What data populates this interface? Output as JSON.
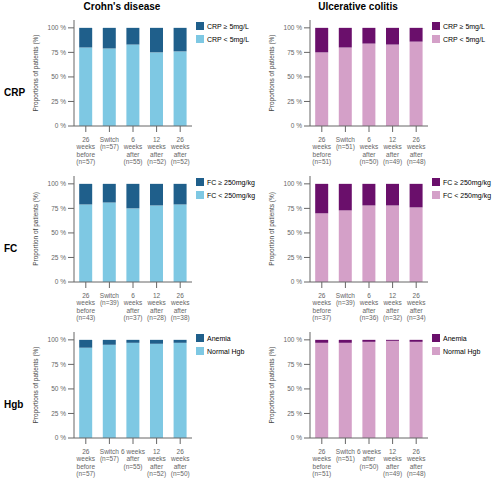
{
  "chart_data": [
    {
      "type": "bar",
      "title": "Crohn's disease",
      "annotations": [
        "CRP"
      ],
      "stacked": true,
      "grid": false,
      "legend": "right",
      "ylabel": "Proportions of patients (%)",
      "categories": [
        "26\nweeks\nbefore\n(n=57)",
        "Switch\n(n=57)",
        "6\nweeks\nafter\n(n=55)",
        "12\nweeks\nafter\n(n=52)",
        "26\nweeks\nafter\n(n=52)"
      ],
      "series": [
        {
          "name": "CRP < 5mg/L",
          "color": "#7EC8E3",
          "values": [
            80,
            79,
            83,
            75,
            76
          ]
        },
        {
          "name": "CRP ≥ 5mg/L",
          "color": "#1F5F8B",
          "values": [
            20,
            21,
            17,
            25,
            24
          ]
        }
      ],
      "ylim": [
        0,
        108
      ],
      "yticks": [
        {
          "value": 0,
          "label": "0 %"
        },
        {
          "value": 25,
          "label": "25 %"
        },
        {
          "value": 50,
          "label": "50 %"
        },
        {
          "value": 75,
          "label": "75 %"
        },
        {
          "value": 100,
          "label": "100 %"
        }
      ]
    },
    {
      "type": "bar",
      "title": "Ulcerative colitis",
      "stacked": true,
      "grid": false,
      "legend": "right",
      "ylabel": "Proportions of patients (%)",
      "categories": [
        "26\nweeks\nbefore\n(n=51)",
        "Switch\n(n=51)",
        "6\nweeks\nafter\n(n=50)",
        "12\nweeks\nafter\n(n=49)",
        "26\nweeks\nafter\n(n=48)"
      ],
      "series": [
        {
          "name": "CRP < 5mg/L",
          "color": "#D4A0C8",
          "values": [
            75,
            80,
            84,
            83,
            86
          ]
        },
        {
          "name": "CRP ≥ 5mg/L",
          "color": "#6A0F6B",
          "values": [
            25,
            20,
            16,
            17,
            14
          ]
        }
      ],
      "ylim": [
        0,
        108
      ],
      "yticks": [
        {
          "value": 0,
          "label": "0 %"
        },
        {
          "value": 25,
          "label": "25 %"
        },
        {
          "value": 50,
          "label": "50 %"
        },
        {
          "value": 75,
          "label": "75 %"
        },
        {
          "value": 100,
          "label": "100 %"
        }
      ]
    },
    {
      "type": "bar",
      "annotations": [
        "FC"
      ],
      "stacked": true,
      "grid": false,
      "legend": "right",
      "ylabel": "Proportion of patients (%)",
      "categories": [
        "26\nweeks\nbefore\n(n=43)",
        "Switch\n(n=39)",
        "6\nweeks\nafter\n(n=37)",
        "12\nweeks\nafter\n(n=28)",
        "26\nweeks\nafter\n(n=38)"
      ],
      "series": [
        {
          "name": "FC < 250mg/kg",
          "color": "#7EC8E3",
          "values": [
            79,
            81,
            75,
            78,
            79
          ]
        },
        {
          "name": "FC ≥ 250mg/kg",
          "color": "#1F5F8B",
          "values": [
            21,
            19,
            25,
            22,
            21
          ]
        }
      ],
      "ylim": [
        0,
        108
      ],
      "yticks": [
        {
          "value": 0,
          "label": "0 %"
        },
        {
          "value": 25,
          "label": "25 %"
        },
        {
          "value": 50,
          "label": "50 %"
        },
        {
          "value": 75,
          "label": "75 %"
        },
        {
          "value": 100,
          "label": "100 %"
        }
      ]
    },
    {
      "type": "bar",
      "stacked": true,
      "grid": false,
      "legend": "right",
      "ylabel": "Proportion of patients (%)",
      "categories": [
        "26\nweeks\nbefore\n(n=37)",
        "Switch\n(n=39)",
        "6\nweeks\nafter\n(n=36)",
        "12\nweeks\nafter\n(n=32)",
        "26\nweeks\nafter\n(n=34)"
      ],
      "series": [
        {
          "name": "FC < 250mg/kg",
          "color": "#D4A0C8",
          "values": [
            70,
            73,
            78,
            78,
            76
          ]
        },
        {
          "name": "FC ≥ 250mg/kg",
          "color": "#6A0F6B",
          "values": [
            30,
            27,
            22,
            22,
            24
          ]
        }
      ],
      "ylim": [
        0,
        108
      ],
      "yticks": [
        {
          "value": 0,
          "label": "0 %"
        },
        {
          "value": 25,
          "label": "25 %"
        },
        {
          "value": 50,
          "label": "50 %"
        },
        {
          "value": 75,
          "label": "75 %"
        },
        {
          "value": 100,
          "label": "100 %"
        }
      ]
    },
    {
      "type": "bar",
      "annotations": [
        "Hgb"
      ],
      "stacked": true,
      "grid": false,
      "legend": "right",
      "ylabel": "Proportions of patients (%)",
      "categories": [
        "26\nweeks\nbefore\n(n=57)",
        "Switch\n(n=57)",
        "6 weeks\nafter\n(n=55)",
        "12\nweeks\nafter\n(n=52)",
        "26\nweeks\nafter\n(n=50)"
      ],
      "series": [
        {
          "name": "Normal Hgb",
          "color": "#7EC8E3",
          "values": [
            92,
            95,
            97,
            96,
            97
          ]
        },
        {
          "name": "Anemia",
          "color": "#1F5F8B",
          "values": [
            8,
            5,
            3,
            4,
            3
          ]
        }
      ],
      "ylim": [
        0,
        108
      ],
      "yticks": [
        {
          "value": 0,
          "label": "0 %"
        },
        {
          "value": 25,
          "label": "25 %"
        },
        {
          "value": 50,
          "label": "50 %"
        },
        {
          "value": 75,
          "label": "75 %"
        },
        {
          "value": 100,
          "label": "100 %"
        }
      ]
    },
    {
      "type": "bar",
      "stacked": true,
      "grid": false,
      "legend": "right",
      "ylabel": "Proportions of patients (%)",
      "categories": [
        "26\nweeks\nbefore\n(n=51)",
        "Switch\n(n=51)",
        "6 weeks\nafter\n(n=50)",
        "12\nweeks\nafter\n(n=49)",
        "26\nweeks\nafter\n(n=48)"
      ],
      "series": [
        {
          "name": "Normal Hgb",
          "color": "#D4A0C8",
          "values": [
            97,
            97,
            98,
            99,
            98
          ]
        },
        {
          "name": "Anemia",
          "color": "#6A0F6B",
          "values": [
            3,
            3,
            2,
            1,
            2
          ]
        }
      ],
      "ylim": [
        0,
        108
      ],
      "yticks": [
        {
          "value": 0,
          "label": "0 %"
        },
        {
          "value": 25,
          "label": "25 %"
        },
        {
          "value": 50,
          "label": "50 %"
        },
        {
          "value": 75,
          "label": "75 %"
        },
        {
          "value": 100,
          "label": "100 %"
        }
      ]
    }
  ]
}
